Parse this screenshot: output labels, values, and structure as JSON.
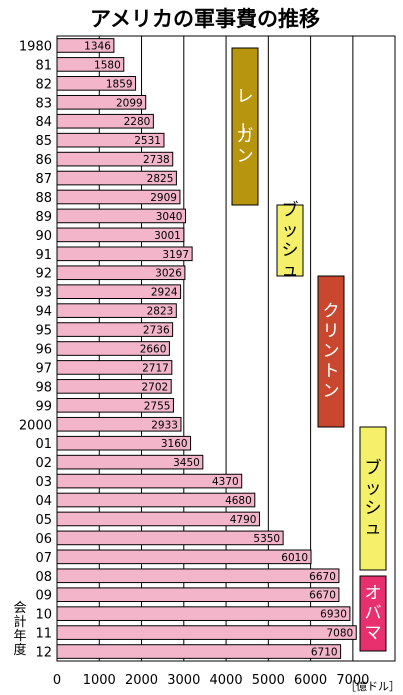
{
  "chart_data": {
    "type": "bar",
    "orientation": "horizontal",
    "title": "アメリカの軍事費の推移",
    "unit_label": "［億ドル］",
    "ylabel": "会計年度",
    "categories": [
      "1980",
      "81",
      "82",
      "83",
      "84",
      "85",
      "86",
      "87",
      "88",
      "89",
      "90",
      "91",
      "92",
      "93",
      "94",
      "95",
      "96",
      "97",
      "98",
      "99",
      "2000",
      "01",
      "02",
      "03",
      "04",
      "05",
      "06",
      "07",
      "08",
      "09",
      "10",
      "11",
      "12"
    ],
    "values": [
      1346,
      1580,
      1859,
      2099,
      2280,
      2531,
      2738,
      2825,
      2909,
      3040,
      3001,
      3197,
      3026,
      2924,
      2823,
      2736,
      2660,
      2717,
      2702,
      2755,
      2933,
      3160,
      3450,
      4370,
      4680,
      4790,
      5350,
      6010,
      6670,
      6670,
      6930,
      7080,
      6710
    ],
    "x_ticks": [
      "0",
      "1000",
      "2000",
      "3000",
      "4000",
      "5000",
      "6000",
      "7000"
    ],
    "xlim": [
      0,
      8000
    ],
    "bar_color": "#f2b5c9",
    "grid": true,
    "presidents": [
      {
        "name": "レーガン",
        "color": "#b8950f",
        "text_color": "#ffffff",
        "from_index": 0,
        "to_index": 8
      },
      {
        "name": "ブッシュ",
        "color": "#f4f06a",
        "text_color": "#000000",
        "from_index": 9,
        "to_index": 12
      },
      {
        "name": "クリントン",
        "color": "#c9472e",
        "text_color": "#ffffff",
        "from_index": 13,
        "to_index": 20
      },
      {
        "name": "ブッシュ",
        "color": "#f4f06a",
        "text_color": "#000000",
        "from_index": 21,
        "to_index": 28
      },
      {
        "name": "オバマ",
        "color": "#e8306e",
        "text_color": "#ffffff",
        "from_index": 29,
        "to_index": 32
      }
    ]
  }
}
